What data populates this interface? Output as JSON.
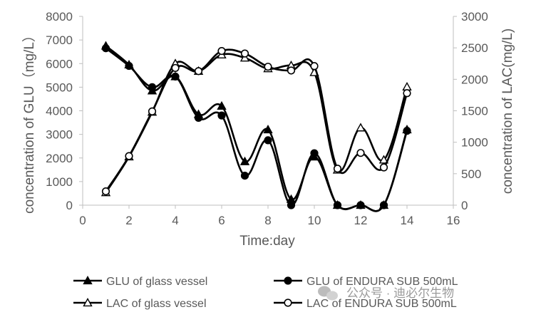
{
  "chart_data": {
    "type": "line",
    "x_axis": {
      "label": "Time:day",
      "range": [
        0,
        16
      ],
      "ticks": [
        0,
        2,
        4,
        6,
        8,
        10,
        12,
        14,
        16
      ]
    },
    "y_axis_left": {
      "label": "concentration of GLU（mg/L）",
      "range": [
        0,
        8000
      ],
      "ticks": [
        0,
        1000,
        2000,
        3000,
        4000,
        5000,
        6000,
        7000,
        8000
      ]
    },
    "y_axis_right": {
      "label": "concentration of LAC(mg/L)",
      "range": [
        0,
        3000
      ],
      "ticks": [
        0,
        500,
        1000,
        1500,
        2000,
        2500,
        3000
      ]
    },
    "grid": false,
    "legend_position": "bottom",
    "series": [
      {
        "name": "GLU of glass vessel",
        "axis": "left",
        "marker": "triangle-filled",
        "color": "#000000",
        "x": [
          1,
          2,
          3,
          4,
          5,
          6,
          7,
          8,
          9,
          10,
          11,
          12,
          13,
          14
        ],
        "y": [
          6750,
          5950,
          4850,
          5450,
          3850,
          4200,
          1850,
          3200,
          250,
          2050,
          0,
          0,
          0,
          3200
        ]
      },
      {
        "name": "GLU of ENDURA SUB 500mL",
        "axis": "left",
        "marker": "circle-filled",
        "color": "#000000",
        "x": [
          1,
          2,
          3,
          4,
          5,
          6,
          7,
          8,
          9,
          10,
          11,
          12,
          13,
          14
        ],
        "y": [
          6650,
          5900,
          5000,
          5450,
          3700,
          3800,
          1250,
          2750,
          0,
          2200,
          0,
          0,
          0,
          3150
        ]
      },
      {
        "name": "LAC of glass vessel",
        "axis": "right",
        "marker": "triangle-open",
        "color": "#000000",
        "x": [
          1,
          2,
          3,
          4,
          5,
          6,
          7,
          8,
          9,
          10,
          11,
          12,
          13,
          14
        ],
        "y": [
          200,
          770,
          1480,
          2250,
          2130,
          2390,
          2340,
          2170,
          2220,
          2110,
          560,
          1230,
          720,
          1880
        ]
      },
      {
        "name": "LAC of ENDURA SUB 500mL",
        "axis": "right",
        "marker": "circle-open",
        "color": "#000000",
        "x": [
          1,
          2,
          3,
          4,
          5,
          6,
          7,
          8,
          9,
          10,
          11,
          12,
          13,
          14
        ],
        "y": [
          220,
          780,
          1490,
          2180,
          2130,
          2450,
          2410,
          2200,
          2140,
          2210,
          580,
          830,
          600,
          1780
        ]
      }
    ]
  },
  "watermark": "公众号 · 迪必尔生物"
}
